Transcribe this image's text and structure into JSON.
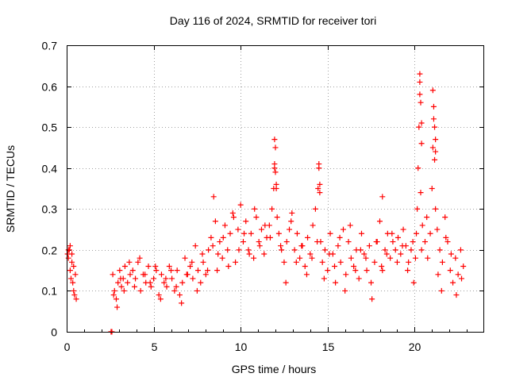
{
  "chart_data": {
    "type": "scatter",
    "title": "Day 116 of 2024, SRMTID for receiver tori",
    "xlabel": "GPS time / hours",
    "ylabel": "SRMTID / TECUs",
    "xlim": [
      0,
      24
    ],
    "ylim": [
      0,
      0.7
    ],
    "xticks": [
      0,
      5,
      10,
      15,
      20
    ],
    "yticks": [
      0,
      0.1,
      0.2,
      0.3,
      0.4,
      0.5,
      0.6,
      0.7
    ],
    "xtick_labels": [
      "0",
      "5",
      "10",
      "15",
      "20"
    ],
    "ytick_labels": [
      "0",
      "0.1",
      "0.2",
      "0.3",
      "0.4",
      "0.5",
      "0.6",
      "0.7"
    ],
    "grid": true,
    "marker": "+",
    "marker_color": "#ff0000",
    "series": [
      {
        "name": "SRMTID",
        "x": [
          0.05,
          0.1,
          0.15,
          0.2,
          0.25,
          0.3,
          0.35,
          0.4,
          0.45,
          0.5,
          0.55,
          0.1,
          0.2,
          0.3,
          0.4,
          2.55,
          2.6,
          2.65,
          2.75,
          2.85,
          2.95,
          3.05,
          3.15,
          3.25,
          3.35,
          3.5,
          3.65,
          3.8,
          3.95,
          4.1,
          4.25,
          4.4,
          4.55,
          4.7,
          4.85,
          5.0,
          5.15,
          5.3,
          5.45,
          5.6,
          5.75,
          5.9,
          6.05,
          6.2,
          6.35,
          6.5,
          6.65,
          6.8,
          6.95,
          7.1,
          7.25,
          7.4,
          7.55,
          7.7,
          7.85,
          8.0,
          8.15,
          8.3,
          8.45,
          8.55,
          8.65,
          8.8,
          8.95,
          9.1,
          9.25,
          9.4,
          9.55,
          9.7,
          9.85,
          10.0,
          10.15,
          10.3,
          10.45,
          10.6,
          10.75,
          10.9,
          11.05,
          11.2,
          11.35,
          11.5,
          11.65,
          11.8,
          11.9,
          11.95,
          12.0,
          12.05,
          12.1,
          12.2,
          12.35,
          12.5,
          12.65,
          12.8,
          12.95,
          13.1,
          13.25,
          13.4,
          13.55,
          13.7,
          13.85,
          14.0,
          14.15,
          14.3,
          14.45,
          14.5,
          14.55,
          14.6,
          14.7,
          14.85,
          15.0,
          15.15,
          15.3,
          15.45,
          15.6,
          15.75,
          15.9,
          16.05,
          16.2,
          16.35,
          16.5,
          16.65,
          16.8,
          16.95,
          17.1,
          17.25,
          17.4,
          17.55,
          17.7,
          17.85,
          18.0,
          18.15,
          18.3,
          18.45,
          18.6,
          18.75,
          18.9,
          19.05,
          19.2,
          19.35,
          19.5,
          19.65,
          19.8,
          19.95,
          20.05,
          20.1,
          20.15,
          20.2,
          20.25,
          20.3,
          20.35,
          20.45,
          20.6,
          20.75,
          20.9,
          21.0,
          21.05,
          21.1,
          21.15,
          21.2,
          21.3,
          21.45,
          21.6,
          21.75,
          21.9,
          22.05,
          22.2,
          22.35,
          22.5,
          22.65,
          22.8,
          2.7,
          2.9,
          3.1,
          3.3,
          3.6,
          3.9,
          4.2,
          4.5,
          4.8,
          5.1,
          5.4,
          5.7,
          6.0,
          6.3,
          6.6,
          6.9,
          7.2,
          7.5,
          7.8,
          8.1,
          8.4,
          8.7,
          9.0,
          9.3,
          9.6,
          9.9,
          10.2,
          10.5,
          10.8,
          11.1,
          11.4,
          11.7,
          12.3,
          12.6,
          12.9,
          13.2,
          13.5,
          13.8,
          14.1,
          14.4,
          14.8,
          15.1,
          15.4,
          15.7,
          16.0,
          16.3,
          16.6,
          16.9,
          17.2,
          17.5,
          17.8,
          18.1,
          18.4,
          18.7,
          19.0,
          19.3,
          19.6,
          19.9,
          20.4,
          20.7,
          21.35,
          21.55,
          21.8,
          22.1,
          22.4,
          22.7,
          11.95,
          11.95,
          12.0,
          12.05,
          14.5,
          14.55,
          20.3,
          20.3,
          20.35,
          20.4,
          20.4,
          21.05,
          21.1,
          21.15,
          21.2,
          21.2,
          18.15
        ],
        "y": [
          0.19,
          0.18,
          0.2,
          0.15,
          0.13,
          0.17,
          0.12,
          0.1,
          0.09,
          0.14,
          0.08,
          0.2,
          0.21,
          0.19,
          0.16,
          0.0,
          0.0,
          0.14,
          0.1,
          0.08,
          0.12,
          0.15,
          0.11,
          0.13,
          0.16,
          0.12,
          0.14,
          0.15,
          0.13,
          0.17,
          0.1,
          0.14,
          0.12,
          0.16,
          0.11,
          0.13,
          0.15,
          0.09,
          0.14,
          0.12,
          0.11,
          0.16,
          0.13,
          0.1,
          0.15,
          0.09,
          0.12,
          0.18,
          0.14,
          0.16,
          0.13,
          0.21,
          0.15,
          0.12,
          0.17,
          0.14,
          0.2,
          0.23,
          0.33,
          0.27,
          0.15,
          0.22,
          0.18,
          0.26,
          0.2,
          0.24,
          0.29,
          0.17,
          0.25,
          0.31,
          0.22,
          0.27,
          0.2,
          0.24,
          0.18,
          0.28,
          0.22,
          0.25,
          0.19,
          0.23,
          0.26,
          0.3,
          0.35,
          0.4,
          0.45,
          0.36,
          0.28,
          0.24,
          0.2,
          0.17,
          0.22,
          0.25,
          0.29,
          0.2,
          0.24,
          0.18,
          0.21,
          0.16,
          0.23,
          0.19,
          0.26,
          0.3,
          0.35,
          0.4,
          0.34,
          0.22,
          0.17,
          0.2,
          0.15,
          0.24,
          0.19,
          0.12,
          0.21,
          0.17,
          0.25,
          0.14,
          0.22,
          0.18,
          0.16,
          0.2,
          0.13,
          0.24,
          0.19,
          0.15,
          0.21,
          0.08,
          0.17,
          0.22,
          0.27,
          0.15,
          0.2,
          0.24,
          0.18,
          0.22,
          0.2,
          0.23,
          0.19,
          0.25,
          0.21,
          0.17,
          0.2,
          0.12,
          0.18,
          0.24,
          0.3,
          0.4,
          0.5,
          0.58,
          0.34,
          0.26,
          0.22,
          0.18,
          0.24,
          0.35,
          0.45,
          0.52,
          0.42,
          0.3,
          0.25,
          0.2,
          0.17,
          0.28,
          0.22,
          0.15,
          0.12,
          0.18,
          0.14,
          0.2,
          0.16,
          0.09,
          0.06,
          0.13,
          0.1,
          0.17,
          0.11,
          0.18,
          0.14,
          0.12,
          0.16,
          0.08,
          0.13,
          0.15,
          0.11,
          0.07,
          0.14,
          0.17,
          0.1,
          0.19,
          0.15,
          0.21,
          0.19,
          0.23,
          0.16,
          0.28,
          0.2,
          0.24,
          0.19,
          0.3,
          0.21,
          0.26,
          0.23,
          0.21,
          0.12,
          0.27,
          0.17,
          0.21,
          0.14,
          0.18,
          0.22,
          0.13,
          0.19,
          0.16,
          0.23,
          0.1,
          0.26,
          0.15,
          0.2,
          0.18,
          0.12,
          0.22,
          0.16,
          0.19,
          0.24,
          0.17,
          0.21,
          0.15,
          0.22,
          0.2,
          0.28,
          0.14,
          0.1,
          0.23,
          0.19,
          0.09,
          0.13,
          0.47,
          0.41,
          0.39,
          0.35,
          0.41,
          0.36,
          0.63,
          0.61,
          0.56,
          0.51,
          0.46,
          0.59,
          0.55,
          0.5,
          0.47,
          0.44,
          0.33
        ]
      }
    ]
  }
}
